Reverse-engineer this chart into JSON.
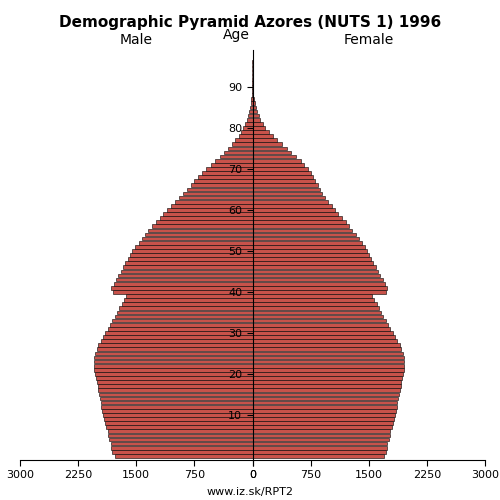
{
  "title": "Demographic Pyramid Azores (NUTS 1) 1996",
  "male_label": "Male",
  "female_label": "Female",
  "age_label": "Age",
  "watermark": "www.iz.sk/RPT2",
  "xlim": 3000,
  "bar_color": "#C8524A",
  "bar_edgecolor": "#000000",
  "male": [
    1780,
    1810,
    1830,
    1820,
    1850,
    1870,
    1860,
    1890,
    1900,
    1920,
    1930,
    1940,
    1950,
    1960,
    1970,
    1980,
    1990,
    2000,
    2010,
    2020,
    2030,
    2040,
    2050,
    2050,
    2040,
    2030,
    2010,
    1990,
    1960,
    1930,
    1900,
    1870,
    1840,
    1810,
    1780,
    1750,
    1720,
    1690,
    1660,
    1630,
    1800,
    1820,
    1790,
    1760,
    1730,
    1700,
    1670,
    1640,
    1610,
    1580,
    1550,
    1510,
    1470,
    1430,
    1390,
    1350,
    1300,
    1250,
    1200,
    1150,
    1100,
    1050,
    1000,
    950,
    900,
    850,
    800,
    750,
    700,
    650,
    600,
    540,
    480,
    420,
    370,
    320,
    270,
    220,
    180,
    150,
    120,
    95,
    75,
    58,
    42,
    30,
    20,
    13,
    8,
    5,
    3,
    2,
    1,
    1,
    1,
    1,
    1
  ],
  "female": [
    1700,
    1720,
    1740,
    1730,
    1760,
    1780,
    1770,
    1800,
    1810,
    1830,
    1840,
    1850,
    1860,
    1870,
    1880,
    1890,
    1900,
    1910,
    1920,
    1930,
    1940,
    1950,
    1960,
    1960,
    1950,
    1940,
    1920,
    1900,
    1870,
    1840,
    1810,
    1780,
    1750,
    1720,
    1690,
    1660,
    1630,
    1600,
    1570,
    1540,
    1720,
    1740,
    1710,
    1680,
    1650,
    1620,
    1590,
    1560,
    1530,
    1500,
    1480,
    1450,
    1410,
    1370,
    1330,
    1290,
    1250,
    1200,
    1150,
    1100,
    1060,
    1020,
    980,
    940,
    900,
    870,
    840,
    810,
    780,
    750,
    710,
    670,
    620,
    560,
    500,
    440,
    380,
    320,
    260,
    210,
    165,
    130,
    100,
    78,
    58,
    42,
    28,
    18,
    11,
    7,
    4,
    2,
    1,
    1,
    1,
    1,
    1
  ]
}
